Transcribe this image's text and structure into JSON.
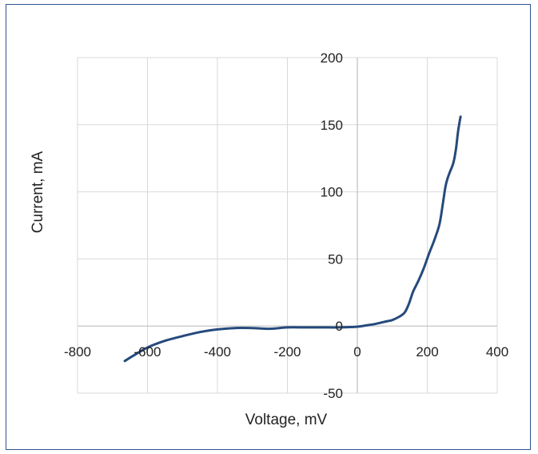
{
  "colors": {
    "series": "#254a7c",
    "grid": "#d9d9d9",
    "axis": "#bfbfbf",
    "frame": "#2f5597"
  },
  "chart_data": {
    "type": "line",
    "title": "",
    "xlabel": "Voltage, mV",
    "ylabel": "Current, mA",
    "xlim": [
      -800,
      400
    ],
    "ylim": [
      -50,
      200
    ],
    "x_ticks": [
      -800,
      -600,
      -400,
      -200,
      0,
      200,
      400
    ],
    "y_ticks": [
      -50,
      0,
      50,
      100,
      150,
      200
    ],
    "grid": true,
    "legend": "none",
    "series": [
      {
        "x": [
          -665,
          -640,
          -600,
          -550,
          -500,
          -450,
          -400,
          -350,
          -300,
          -250,
          -200,
          -150,
          -100,
          -50,
          0,
          25,
          50,
          75,
          100,
          120,
          135,
          145,
          152,
          160,
          175,
          190,
          205,
          220,
          235,
          245,
          252,
          258,
          265,
          275,
          282,
          288,
          295
        ],
        "y": [
          -26,
          -22,
          -16,
          -11,
          -7.5,
          -4.5,
          -2.5,
          -1.5,
          -1.5,
          -2,
          -1,
          -1,
          -1,
          -1,
          -0.5,
          0.5,
          1.5,
          3,
          4.5,
          7,
          10,
          15,
          20,
          26,
          34,
          43,
          54,
          64,
          76,
          92,
          104,
          110,
          115,
          122,
          132,
          145,
          156
        ]
      }
    ]
  }
}
